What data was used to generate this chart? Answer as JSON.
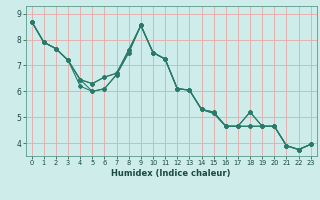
{
  "xlabel": "Humidex (Indice chaleur)",
  "bg_color": "#cdecea",
  "grid_color": "#e8a8a8",
  "line_color": "#2a7a6a",
  "xlim": [
    -0.5,
    23.5
  ],
  "ylim": [
    3.5,
    9.3
  ],
  "xticks": [
    0,
    1,
    2,
    3,
    4,
    5,
    6,
    7,
    8,
    9,
    10,
    11,
    12,
    13,
    14,
    15,
    16,
    17,
    18,
    19,
    20,
    21,
    22,
    23
  ],
  "yticks": [
    4,
    5,
    6,
    7,
    8,
    9
  ],
  "lines": [
    {
      "x": [
        0,
        1,
        2,
        3,
        4,
        5,
        6,
        7,
        8,
        9,
        10,
        11,
        12,
        13,
        14,
        15,
        16,
        17,
        18,
        19,
        20,
        21,
        22,
        23
      ],
      "y": [
        8.7,
        7.9,
        7.65,
        7.2,
        6.2,
        6.0,
        6.1,
        6.65,
        7.5,
        8.55,
        7.5,
        7.25,
        6.1,
        6.05,
        5.3,
        5.15,
        4.65,
        4.65,
        5.2,
        4.65,
        4.65,
        3.9,
        3.75,
        3.95
      ]
    },
    {
      "x": [
        0,
        1,
        2,
        3,
        4,
        5,
        6,
        7,
        8,
        9,
        10,
        11,
        12,
        13,
        14,
        15,
        16,
        17,
        18,
        19,
        20,
        21,
        22,
        23
      ],
      "y": [
        8.7,
        7.9,
        7.65,
        7.2,
        6.45,
        6.3,
        6.55,
        6.7,
        7.6,
        8.55,
        7.5,
        7.25,
        6.1,
        6.05,
        5.3,
        5.2,
        4.65,
        4.65,
        4.65,
        4.65,
        4.65,
        3.9,
        3.75,
        3.95
      ]
    },
    {
      "x": [
        0,
        1,
        2,
        3,
        4,
        5,
        6,
        7,
        8,
        9,
        10,
        11,
        12,
        13,
        14,
        15,
        16,
        17,
        18,
        19,
        20,
        21,
        22,
        23
      ],
      "y": [
        8.7,
        7.9,
        7.65,
        7.2,
        6.45,
        6.3,
        6.55,
        6.7,
        7.6,
        8.55,
        7.5,
        7.25,
        6.1,
        6.05,
        5.3,
        5.2,
        4.65,
        4.65,
        4.65,
        4.65,
        4.65,
        3.9,
        3.75,
        3.95
      ]
    },
    {
      "x": [
        0,
        1,
        2,
        3,
        4,
        5,
        6,
        7,
        8,
        9,
        10,
        11,
        12,
        13,
        14,
        15,
        16,
        17,
        18,
        19,
        20,
        21,
        22,
        23
      ],
      "y": [
        8.7,
        7.9,
        7.65,
        7.2,
        6.45,
        6.0,
        6.1,
        6.65,
        7.5,
        8.55,
        7.5,
        7.25,
        6.1,
        6.05,
        5.3,
        5.15,
        4.65,
        4.65,
        5.2,
        4.65,
        4.65,
        3.9,
        3.75,
        3.95
      ]
    }
  ]
}
